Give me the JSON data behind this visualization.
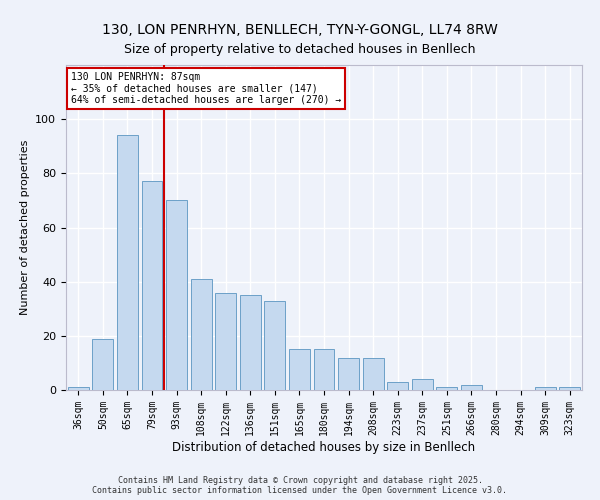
{
  "title1": "130, LON PENRHYN, BENLLECH, TYN-Y-GONGL, LL74 8RW",
  "title2": "Size of property relative to detached houses in Benllech",
  "xlabel": "Distribution of detached houses by size in Benllech",
  "ylabel": "Number of detached properties",
  "categories": [
    "36sqm",
    "50sqm",
    "65sqm",
    "79sqm",
    "93sqm",
    "108sqm",
    "122sqm",
    "136sqm",
    "151sqm",
    "165sqm",
    "180sqm",
    "194sqm",
    "208sqm",
    "223sqm",
    "237sqm",
    "251sqm",
    "266sqm",
    "280sqm",
    "294sqm",
    "309sqm",
    "323sqm"
  ],
  "values": [
    1,
    19,
    94,
    77,
    70,
    41,
    36,
    35,
    33,
    15,
    15,
    12,
    12,
    3,
    4,
    1,
    2,
    0,
    0,
    1,
    1
  ],
  "bar_color": "#c5d9ef",
  "bar_edge_color": "#6ca0c8",
  "vline_x": 3.5,
  "vline_color": "#cc0000",
  "annotation_text": "130 LON PENRHYN: 87sqm\n← 35% of detached houses are smaller (147)\n64% of semi-detached houses are larger (270) →",
  "annotation_fontsize": 7,
  "annotation_box_color": "#cc0000",
  "ylim": [
    0,
    120
  ],
  "yticks": [
    0,
    20,
    40,
    60,
    80,
    100
  ],
  "background_color": "#eef2fa",
  "grid_color": "#ffffff",
  "footer": "Contains HM Land Registry data © Crown copyright and database right 2025.\nContains public sector information licensed under the Open Government Licence v3.0.",
  "title_fontsize": 10,
  "subtitle_fontsize": 9,
  "xlabel_fontsize": 8.5,
  "ylabel_fontsize": 8
}
